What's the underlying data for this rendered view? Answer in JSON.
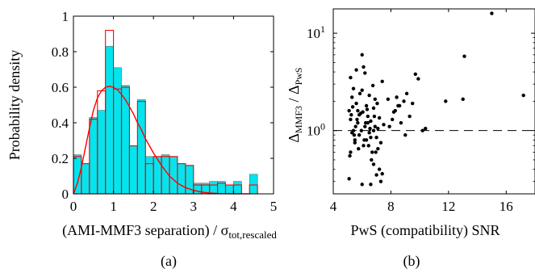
{
  "chart_data": [
    {
      "panel": "(a)",
      "type": "bar",
      "xlabel": "(AMI-MMF3 separation) / σ",
      "xlabel_sub": "tot,rescaled",
      "ylabel": "Probability density",
      "xlim": [
        0,
        5
      ],
      "ylim": [
        0,
        1
      ],
      "xticks": [
        "0",
        "1",
        "2",
        "3",
        "4",
        "5"
      ],
      "yticks": [
        "0",
        "0.2",
        "0.4",
        "0.6",
        "0.8",
        "1"
      ],
      "bin_width": 0.2,
      "bin_edges_start": [
        0.0,
        0.2,
        0.4,
        0.6,
        0.8,
        1.0,
        1.2,
        1.4,
        1.6,
        1.8,
        2.0,
        2.2,
        2.4,
        2.6,
        2.8,
        3.0,
        3.2,
        3.4,
        3.6,
        3.8,
        4.0,
        4.2,
        4.4
      ],
      "series": [
        {
          "name": "",
          "style": "filled",
          "color": "#00e5ee",
          "values": [
            0.22,
            0.17,
            0.43,
            0.47,
            0.83,
            0.71,
            0.61,
            0.27,
            0.53,
            0.21,
            0.21,
            0.22,
            0.21,
            0.17,
            0.16,
            0.06,
            0.06,
            0.07,
            0.07,
            0.05,
            0.07,
            0.0,
            0.11
          ]
        },
        {
          "name": "",
          "style": "outline",
          "color": "#ff0000",
          "values": [
            0.21,
            0.17,
            0.42,
            0.58,
            0.92,
            0.59,
            0.6,
            0.27,
            0.52,
            0.17,
            0.21,
            0.21,
            0.21,
            0.17,
            0.16,
            0.05,
            0.05,
            0.05,
            0.06,
            0.05,
            0.05,
            0.0,
            0.05
          ]
        },
        {
          "name": "",
          "type": "line",
          "color": "#ff0000",
          "x": [
            0,
            0.1,
            0.2,
            0.3,
            0.4,
            0.5,
            0.6,
            0.7,
            0.8,
            0.9,
            1.0,
            1.1,
            1.2,
            1.3,
            1.4,
            1.5,
            1.6,
            1.7,
            1.8,
            1.9,
            2.0,
            2.2,
            2.4,
            2.6,
            2.8,
            3.0,
            3.2,
            3.4,
            3.6,
            3.8,
            4.0,
            4.2,
            4.4
          ],
          "y": [
            0,
            0.06,
            0.15,
            0.26,
            0.37,
            0.47,
            0.54,
            0.58,
            0.6,
            0.605,
            0.6,
            0.585,
            0.56,
            0.53,
            0.49,
            0.45,
            0.4,
            0.36,
            0.31,
            0.27,
            0.23,
            0.16,
            0.1,
            0.06,
            0.035,
            0.02,
            0.01,
            0.005,
            0.002,
            0.001,
            0.0005,
            0.0002,
            0.0001
          ]
        }
      ]
    },
    {
      "panel": "(b)",
      "type": "scatter",
      "xlabel": "PwS (compatibility) SNR",
      "ylabel_main": "Δ",
      "ylabel_sub1": "MMF3",
      "ylabel_mid": " / Δ",
      "ylabel_sub2": "PwS",
      "xlim": [
        4,
        18
      ],
      "ylim_log10": [
        -0.65,
        1.25
      ],
      "xticks": [
        "4",
        "8",
        "12",
        "16"
      ],
      "yticks": [
        {
          "base": "10",
          "exp": "0",
          "value": 1
        },
        {
          "base": "10",
          "exp": "1",
          "value": 10
        }
      ],
      "reference_line": {
        "y": 1,
        "style": "dashed"
      },
      "series": [
        {
          "name": "",
          "color": "#000000",
          "x": [
            5.1,
            5.2,
            5.3,
            5.4,
            5.5,
            5.6,
            5.7,
            5.8,
            5.9,
            6.0,
            6.1,
            6.2,
            6.3,
            6.4,
            6.5,
            6.6,
            6.7,
            6.8,
            6.9,
            7.0,
            7.1,
            7.2,
            7.3,
            7.4,
            7.5,
            5.15,
            5.25,
            5.35,
            5.45,
            5.55,
            5.65,
            5.75,
            5.85,
            5.95,
            6.05,
            6.15,
            6.25,
            6.35,
            6.45,
            6.55,
            6.65,
            6.75,
            6.85,
            6.95,
            7.05,
            5.2,
            5.4,
            5.6,
            5.8,
            6.0,
            6.2,
            6.4,
            6.6,
            6.8,
            7.0,
            7.2,
            5.3,
            5.7,
            6.1,
            6.5,
            6.9,
            5.5,
            6.3,
            7.1,
            7.9,
            8.1,
            8.3,
            8.5,
            8.7,
            8.9,
            9.1,
            9.3,
            9.5,
            9.7,
            9.9,
            10.2,
            10.4,
            9.0,
            8.6,
            8.2,
            11.8,
            13.0,
            13.1,
            15.0,
            17.2,
            5.1,
            5.2,
            6.0,
            6.6,
            7.3,
            7.4,
            6.8,
            7.8,
            8.4
          ],
          "y": [
            1.6,
            1.3,
            2.2,
            1.0,
            0.8,
            1.9,
            1.2,
            0.9,
            1.5,
            2.6,
            0.7,
            1.1,
            1.8,
            1.4,
            0.95,
            1.25,
            0.6,
            1.7,
            2.1,
            0.85,
            1.05,
            1.35,
            0.75,
            3.2,
            1.15,
            0.55,
            1.45,
            1.75,
            0.9,
            1.1,
            1.3,
            0.65,
            2.4,
            1.0,
            1.55,
            0.8,
            1.2,
            1.65,
            0.7,
            1.05,
            0.5,
            2.9,
            1.4,
            0.6,
            1.9,
            3.5,
            2.7,
            4.2,
            1.45,
            6.0,
            3.9,
            1.2,
            0.85,
            0.45,
            0.35,
            0.4,
            0.95,
            1.6,
            4.5,
            2.3,
            1.1,
            0.75,
            0.8,
            0.65,
            1.1,
            1.3,
            1.6,
            1.8,
            1.2,
            2.0,
            2.4,
            1.4,
            1.9,
            3.8,
            3.4,
            1.0,
            1.05,
            0.9,
            1.8,
            1.55,
            2.0,
            2.1,
            5.8,
            16.0,
            2.3,
            0.32,
            0.6,
            0.28,
            0.28,
            0.3,
            0.36,
            1.0,
            2.1,
            2.2
          ]
        }
      ]
    }
  ]
}
